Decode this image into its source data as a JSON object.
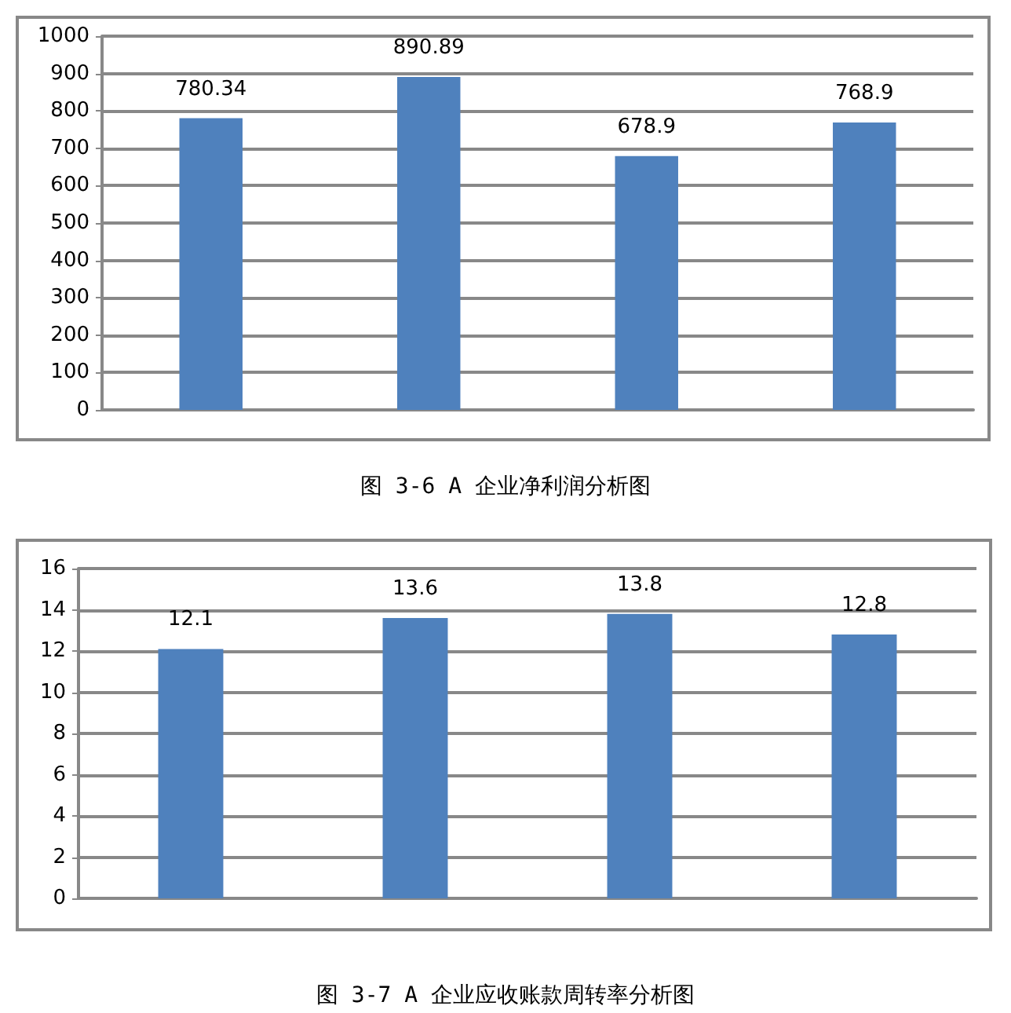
{
  "chart_data": [
    {
      "type": "bar",
      "title": "图 3-6 A 企业净利润分析图",
      "categories": [
        null,
        null,
        null,
        null
      ],
      "values": [
        780.34,
        890.89,
        678.9,
        768.9
      ],
      "color": "#4f81bd",
      "ylim": [
        0,
        1000
      ],
      "yticks": [
        0,
        100,
        200,
        300,
        400,
        500,
        600,
        700,
        800,
        900,
        1000
      ],
      "grid": "y",
      "data_labels": true
    },
    {
      "type": "bar",
      "title": "图 3-7 A 企业应收账款周转率分析图",
      "categories": [
        null,
        null,
        null,
        null
      ],
      "values": [
        12.1,
        13.6,
        13.8,
        12.8
      ],
      "color": "#4f81bd",
      "ylim": [
        0,
        16
      ],
      "yticks": [
        0,
        2,
        4,
        6,
        8,
        10,
        12,
        14,
        16
      ],
      "grid": "y",
      "data_labels": true
    }
  ]
}
